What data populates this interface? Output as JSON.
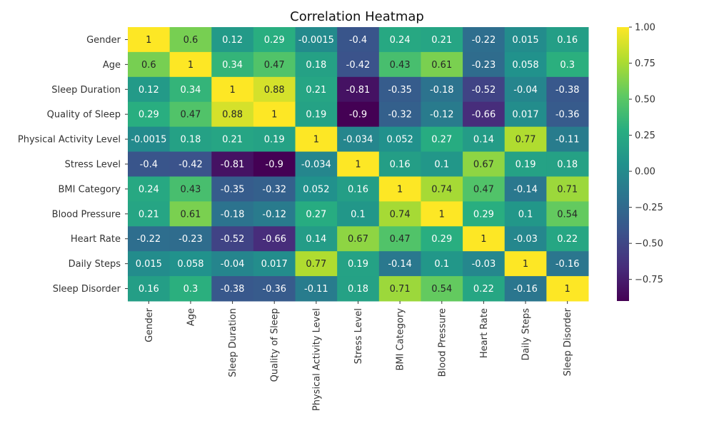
{
  "chart_data": {
    "type": "heatmap",
    "title": "Correlation Heatmap",
    "rows": [
      "Gender",
      "Age",
      "Sleep Duration",
      "Quality of Sleep",
      "Physical Activity Level",
      "Stress Level",
      "BMI Category",
      "Blood Pressure",
      "Heart Rate",
      "Daily Steps",
      "Sleep Disorder"
    ],
    "columns": [
      "Gender",
      "Age",
      "Sleep Duration",
      "Quality of Sleep",
      "Physical Activity Level",
      "Stress Level",
      "BMI Category",
      "Blood Pressure",
      "Heart Rate",
      "Daily Steps",
      "Sleep Disorder"
    ],
    "values": [
      [
        1,
        0.6,
        0.12,
        0.29,
        -0.0015,
        -0.4,
        0.24,
        0.21,
        -0.22,
        0.015,
        0.16
      ],
      [
        0.6,
        1,
        0.34,
        0.47,
        0.18,
        -0.42,
        0.43,
        0.61,
        -0.23,
        0.058,
        0.3
      ],
      [
        0.12,
        0.34,
        1,
        0.88,
        0.21,
        -0.81,
        -0.35,
        -0.18,
        -0.52,
        -0.04,
        -0.38
      ],
      [
        0.29,
        0.47,
        0.88,
        1,
        0.19,
        -0.9,
        -0.32,
        -0.12,
        -0.66,
        0.017,
        -0.36
      ],
      [
        -0.0015,
        0.18,
        0.21,
        0.19,
        1,
        -0.034,
        0.052,
        0.27,
        0.14,
        0.77,
        -0.11
      ],
      [
        -0.4,
        -0.42,
        -0.81,
        -0.9,
        -0.034,
        1,
        0.16,
        0.1,
        0.67,
        0.19,
        0.18
      ],
      [
        0.24,
        0.43,
        -0.35,
        -0.32,
        0.052,
        0.16,
        1,
        0.74,
        0.47,
        -0.14,
        0.71
      ],
      [
        0.21,
        0.61,
        -0.18,
        -0.12,
        0.27,
        0.1,
        0.74,
        1,
        0.29,
        0.1,
        0.54
      ],
      [
        -0.22,
        -0.23,
        -0.52,
        -0.66,
        0.14,
        0.67,
        0.47,
        0.29,
        1,
        -0.03,
        0.22
      ],
      [
        0.015,
        0.058,
        -0.04,
        0.017,
        0.77,
        0.19,
        -0.14,
        0.1,
        -0.03,
        1,
        -0.16
      ],
      [
        0.16,
        0.3,
        -0.38,
        -0.36,
        -0.11,
        0.18,
        0.71,
        0.54,
        0.22,
        -0.16,
        1
      ]
    ],
    "value_range": [
      -0.9,
      1
    ],
    "colormap": "viridis",
    "colorbar_ticks": [
      "1.00",
      "0.75",
      "0.50",
      "0.25",
      "0.00",
      "−0.25",
      "−0.50",
      "−0.75"
    ],
    "colorbar_tick_values": [
      1,
      0.75,
      0.5,
      0.25,
      0,
      -0.25,
      -0.5,
      -0.75
    ]
  }
}
